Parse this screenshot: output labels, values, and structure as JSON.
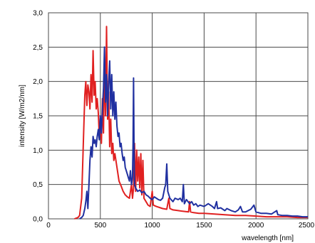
{
  "chart_data": {
    "type": "line",
    "xlabel": "wavelength [nm]",
    "ylabel": "intensity [W/m2/nm]",
    "xlim": [
      0,
      2500
    ],
    "ylim": [
      0,
      3.0
    ],
    "xticks": [
      "0",
      "500",
      "1000",
      "1500",
      "2000",
      "2500"
    ],
    "yticks": [
      "0,0",
      "0,5",
      "1,0",
      "1,5",
      "2,0",
      "2,5",
      "3,0"
    ],
    "grid": true,
    "series": [
      {
        "color": "#e02020",
        "points": [
          [
            250,
            0
          ],
          [
            285,
            0.02
          ],
          [
            300,
            0.05
          ],
          [
            320,
            0.3
          ],
          [
            340,
            1.3
          ],
          [
            350,
            1.8
          ],
          [
            360,
            2.0
          ],
          [
            370,
            1.65
          ],
          [
            380,
            1.95
          ],
          [
            390,
            1.85
          ],
          [
            400,
            1.6
          ],
          [
            410,
            2.1
          ],
          [
            420,
            1.7
          ],
          [
            430,
            2.45
          ],
          [
            440,
            1.8
          ],
          [
            450,
            2.0
          ],
          [
            460,
            1.6
          ],
          [
            470,
            1.75
          ],
          [
            480,
            1.55
          ],
          [
            490,
            1.2
          ],
          [
            500,
            1.45
          ],
          [
            510,
            1.1
          ],
          [
            520,
            1.75
          ],
          [
            530,
            1.25
          ],
          [
            540,
            2.3
          ],
          [
            550,
            1.5
          ],
          [
            560,
            2.8
          ],
          [
            570,
            1.45
          ],
          [
            580,
            1.85
          ],
          [
            590,
            1.05
          ],
          [
            600,
            1.45
          ],
          [
            610,
            0.95
          ],
          [
            620,
            1.1
          ],
          [
            630,
            0.85
          ],
          [
            640,
            0.95
          ],
          [
            660,
            0.75
          ],
          [
            680,
            0.55
          ],
          [
            700,
            0.48
          ],
          [
            720,
            0.4
          ],
          [
            740,
            0.35
          ],
          [
            760,
            0.32
          ],
          [
            780,
            0.3
          ],
          [
            800,
            0.5
          ],
          [
            810,
            0.3
          ],
          [
            820,
            0.45
          ],
          [
            830,
            1.1
          ],
          [
            840,
            0.4
          ],
          [
            850,
            1.0
          ],
          [
            860,
            0.55
          ],
          [
            870,
            0.9
          ],
          [
            880,
            0.45
          ],
          [
            890,
            0.95
          ],
          [
            900,
            0.35
          ],
          [
            910,
            0.85
          ],
          [
            920,
            0.3
          ],
          [
            940,
            0.25
          ],
          [
            960,
            0.2
          ],
          [
            980,
            0.18
          ],
          [
            1000,
            0.4
          ],
          [
            1010,
            0.2
          ],
          [
            1040,
            0.18
          ],
          [
            1080,
            0.16
          ],
          [
            1100,
            0.15
          ],
          [
            1140,
            0.14
          ],
          [
            1160,
            0.3
          ],
          [
            1170,
            0.15
          ],
          [
            1200,
            0.13
          ],
          [
            1250,
            0.12
          ],
          [
            1300,
            0.11
          ],
          [
            1350,
            0.1
          ],
          [
            1360,
            0.25
          ],
          [
            1370,
            0.1
          ],
          [
            1400,
            0.09
          ],
          [
            1450,
            0.08
          ],
          [
            1500,
            0.08
          ],
          [
            1600,
            0.07
          ],
          [
            1700,
            0.06
          ],
          [
            1800,
            0.05
          ],
          [
            1900,
            0.05
          ],
          [
            2000,
            0.04
          ],
          [
            2100,
            0.03
          ],
          [
            2200,
            0.03
          ],
          [
            2300,
            0.03
          ],
          [
            2400,
            0.02
          ],
          [
            2500,
            0.02
          ]
        ]
      },
      {
        "color": "#2030a0",
        "points": [
          [
            300,
            0
          ],
          [
            320,
            0.02
          ],
          [
            335,
            0.05
          ],
          [
            350,
            0.15
          ],
          [
            360,
            0.25
          ],
          [
            370,
            0.4
          ],
          [
            380,
            0.15
          ],
          [
            390,
            0.5
          ],
          [
            400,
            0.85
          ],
          [
            410,
            1.05
          ],
          [
            420,
            0.9
          ],
          [
            430,
            1.2
          ],
          [
            440,
            1.1
          ],
          [
            450,
            1.15
          ],
          [
            460,
            1.05
          ],
          [
            470,
            1.2
          ],
          [
            480,
            1.3
          ],
          [
            490,
            1.15
          ],
          [
            500,
            1.5
          ],
          [
            510,
            1.25
          ],
          [
            520,
            1.6
          ],
          [
            530,
            1.9
          ],
          [
            540,
            2.5
          ],
          [
            550,
            1.7
          ],
          [
            560,
            2.1
          ],
          [
            570,
            1.5
          ],
          [
            580,
            1.95
          ],
          [
            590,
            2.3
          ],
          [
            600,
            1.6
          ],
          [
            610,
            2.1
          ],
          [
            620,
            1.5
          ],
          [
            630,
            1.85
          ],
          [
            640,
            1.45
          ],
          [
            650,
            1.7
          ],
          [
            660,
            1.35
          ],
          [
            670,
            1.2
          ],
          [
            680,
            1.25
          ],
          [
            690,
            1.05
          ],
          [
            700,
            1.1
          ],
          [
            710,
            0.95
          ],
          [
            720,
            0.85
          ],
          [
            730,
            0.9
          ],
          [
            740,
            0.75
          ],
          [
            750,
            0.7
          ],
          [
            760,
            0.65
          ],
          [
            770,
            0.6
          ],
          [
            780,
            0.55
          ],
          [
            790,
            0.7
          ],
          [
            800,
            0.5
          ],
          [
            810,
            0.6
          ],
          [
            815,
            1.1
          ],
          [
            820,
            2.05
          ],
          [
            825,
            1.0
          ],
          [
            830,
            0.5
          ],
          [
            840,
            0.45
          ],
          [
            860,
            0.4
          ],
          [
            880,
            0.42
          ],
          [
            900,
            0.38
          ],
          [
            920,
            0.4
          ],
          [
            940,
            0.35
          ],
          [
            960,
            0.33
          ],
          [
            980,
            0.3
          ],
          [
            1000,
            0.28
          ],
          [
            1020,
            0.32
          ],
          [
            1040,
            0.3
          ],
          [
            1060,
            0.28
          ],
          [
            1080,
            0.27
          ],
          [
            1100,
            0.3
          ],
          [
            1120,
            0.45
          ],
          [
            1130,
            0.5
          ],
          [
            1140,
            0.8
          ],
          [
            1150,
            0.4
          ],
          [
            1170,
            0.3
          ],
          [
            1200,
            0.25
          ],
          [
            1220,
            0.3
          ],
          [
            1250,
            0.28
          ],
          [
            1270,
            0.3
          ],
          [
            1290,
            0.25
          ],
          [
            1300,
            0.5
          ],
          [
            1310,
            0.22
          ],
          [
            1330,
            0.28
          ],
          [
            1360,
            0.22
          ],
          [
            1380,
            0.25
          ],
          [
            1400,
            0.2
          ],
          [
            1420,
            0.22
          ],
          [
            1440,
            0.18
          ],
          [
            1460,
            0.2
          ],
          [
            1500,
            0.18
          ],
          [
            1540,
            0.22
          ],
          [
            1580,
            0.18
          ],
          [
            1600,
            0.15
          ],
          [
            1620,
            0.25
          ],
          [
            1630,
            0.15
          ],
          [
            1660,
            0.16
          ],
          [
            1700,
            0.12
          ],
          [
            1720,
            0.15
          ],
          [
            1760,
            0.12
          ],
          [
            1800,
            0.1
          ],
          [
            1830,
            0.13
          ],
          [
            1850,
            0.18
          ],
          [
            1870,
            0.1
          ],
          [
            1900,
            0.1
          ],
          [
            1950,
            0.14
          ],
          [
            1980,
            0.2
          ],
          [
            2000,
            0.1
          ],
          [
            2050,
            0.08
          ],
          [
            2100,
            0.08
          ],
          [
            2150,
            0.07
          ],
          [
            2200,
            0.12
          ],
          [
            2210,
            0.06
          ],
          [
            2250,
            0.05
          ],
          [
            2300,
            0.05
          ],
          [
            2350,
            0.04
          ],
          [
            2400,
            0.04
          ],
          [
            2450,
            0.03
          ],
          [
            2500,
            0.03
          ]
        ]
      }
    ]
  }
}
